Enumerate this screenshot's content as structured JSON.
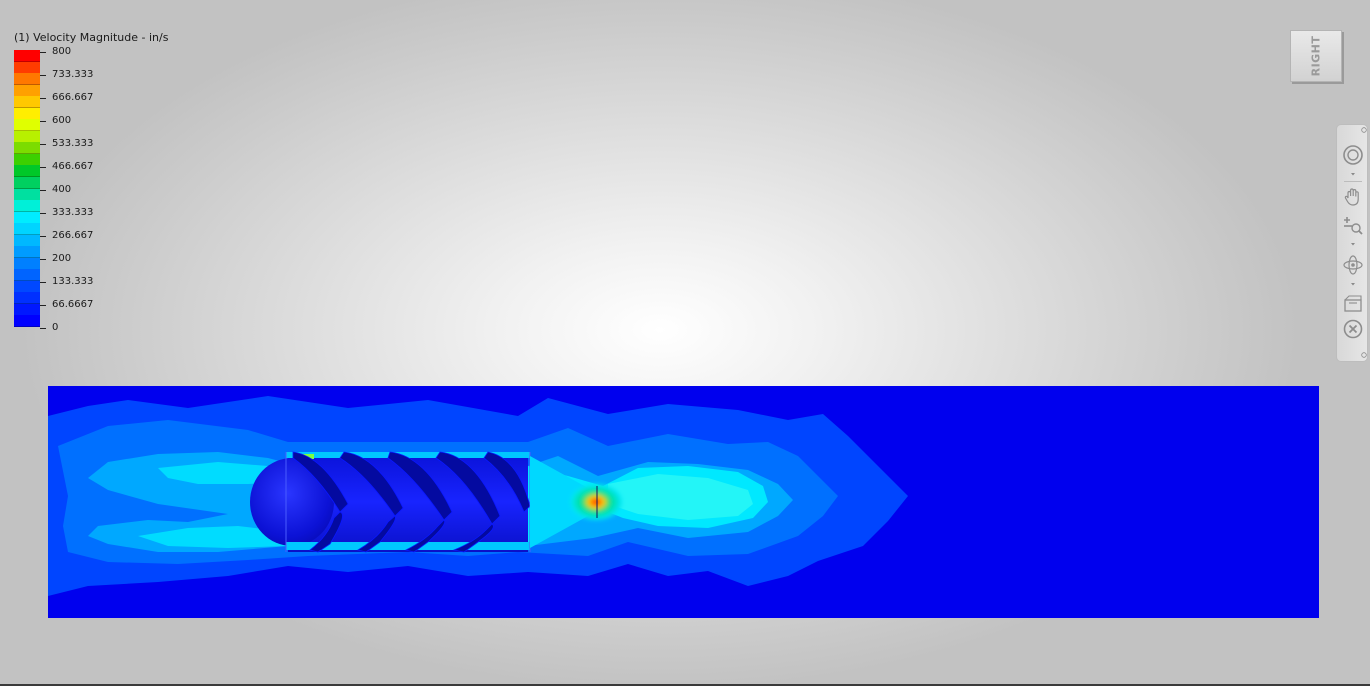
{
  "legend": {
    "title": "(1) Velocity Magnitude - in/s",
    "labels": [
      "800",
      "733.333",
      "666.667",
      "600",
      "533.333",
      "466.667",
      "400",
      "333.333",
      "266.667",
      "200",
      "133.333",
      "66.6667",
      "0"
    ],
    "colors": [
      "#ff0000",
      "#ff3c00",
      "#ff7800",
      "#ffa000",
      "#ffc800",
      "#ffee00",
      "#e0ff00",
      "#b8f000",
      "#7cdc00",
      "#3cd000",
      "#00c828",
      "#00d060",
      "#00e0a0",
      "#00f0d8",
      "#00ecff",
      "#00d4ff",
      "#00b8ff",
      "#009cff",
      "#0080ff",
      "#0064ff",
      "#0048ff",
      "#0030ff",
      "#0018ff",
      "#0000ff"
    ]
  },
  "viewcube": {
    "face_label": "RIGHT"
  },
  "navbar": {
    "items": [
      "steering-wheel-icon",
      "pan-icon",
      "zoom-icon",
      "orbit-icon",
      "look-at-icon",
      "stop-icon"
    ]
  }
}
